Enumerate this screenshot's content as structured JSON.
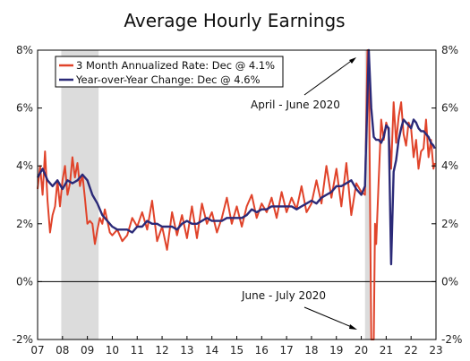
{
  "chart_data": {
    "type": "line",
    "title": "Average Hourly Earnings",
    "xlabel": "",
    "ylabel": "",
    "ylim": [
      -2,
      8
    ],
    "xlim": [
      2007.0,
      2023.0
    ],
    "yticks": [
      "8%",
      "6%",
      "4%",
      "2%",
      "0%",
      "-2%"
    ],
    "ytick_values": [
      8,
      6,
      4,
      2,
      0,
      -2
    ],
    "xticks": [
      "07",
      "08",
      "09",
      "10",
      "11",
      "12",
      "13",
      "14",
      "15",
      "16",
      "17",
      "18",
      "19",
      "20",
      "21",
      "22",
      "23"
    ],
    "grid": "horizontal",
    "legend_position": "top-left",
    "recession_shading": [
      [
        2007.95,
        2009.45
      ],
      [
        2020.15,
        2020.35
      ]
    ],
    "colors": {
      "annualized": "#e0432a",
      "yoy": "#2b2a78",
      "shade": "#dcdcdc",
      "zero_line": "#000000"
    },
    "annotations": [
      {
        "text": "April - June 2020",
        "x": 2020.3,
        "y": 8.0
      },
      {
        "text": "June - July 2020",
        "x": 2020.4,
        "y": -2.0
      }
    ],
    "series": [
      {
        "name": "3 Month Annualized Rate: Dec @ 4.1%",
        "key": "annualized",
        "x": [
          2007.0,
          2007.1,
          2007.2,
          2007.3,
          2007.4,
          2007.5,
          2007.6,
          2007.7,
          2007.8,
          2007.9,
          2008.0,
          2008.1,
          2008.2,
          2008.3,
          2008.4,
          2008.5,
          2008.6,
          2008.7,
          2008.8,
          2008.9,
          2009.0,
          2009.1,
          2009.2,
          2009.3,
          2009.4,
          2009.5,
          2009.6,
          2009.7,
          2009.8,
          2009.9,
          2010.0,
          2010.2,
          2010.4,
          2010.6,
          2010.8,
          2011.0,
          2011.2,
          2011.4,
          2011.6,
          2011.8,
          2012.0,
          2012.2,
          2012.4,
          2012.6,
          2012.8,
          2013.0,
          2013.2,
          2013.4,
          2013.6,
          2013.8,
          2014.0,
          2014.2,
          2014.4,
          2014.6,
          2014.8,
          2015.0,
          2015.2,
          2015.4,
          2015.6,
          2015.8,
          2016.0,
          2016.2,
          2016.4,
          2016.6,
          2016.8,
          2017.0,
          2017.2,
          2017.4,
          2017.6,
          2017.8,
          2018.0,
          2018.2,
          2018.4,
          2018.6,
          2018.8,
          2019.0,
          2019.2,
          2019.4,
          2019.6,
          2019.8,
          2020.0,
          2020.15,
          2020.25,
          2020.3,
          2020.4,
          2020.5,
          2020.55,
          2020.6,
          2020.7,
          2020.8,
          2020.9,
          2021.0,
          2021.1,
          2021.2,
          2021.3,
          2021.4,
          2021.5,
          2021.6,
          2021.7,
          2021.8,
          2021.9,
          2022.0,
          2022.1,
          2022.2,
          2022.3,
          2022.4,
          2022.5,
          2022.6,
          2022.7,
          2022.8,
          2022.9,
          2022.95
        ],
        "values": [
          3.2,
          4.0,
          3.0,
          4.5,
          2.8,
          1.7,
          2.3,
          2.6,
          3.5,
          2.6,
          3.5,
          4.0,
          3.0,
          3.4,
          4.3,
          3.6,
          4.1,
          3.3,
          3.7,
          2.9,
          2.0,
          2.1,
          2.0,
          1.3,
          1.8,
          2.2,
          2.0,
          2.5,
          2.1,
          1.7,
          1.6,
          1.8,
          1.4,
          1.6,
          2.2,
          1.9,
          2.4,
          1.8,
          2.8,
          1.4,
          1.9,
          1.1,
          2.4,
          1.6,
          2.3,
          1.5,
          2.6,
          1.5,
          2.7,
          2.0,
          2.4,
          1.7,
          2.2,
          2.9,
          2.0,
          2.6,
          1.9,
          2.6,
          3.0,
          2.2,
          2.7,
          2.4,
          2.9,
          2.2,
          3.1,
          2.4,
          2.9,
          2.5,
          3.3,
          2.4,
          2.7,
          3.5,
          2.7,
          4.0,
          2.9,
          3.9,
          2.6,
          4.1,
          2.3,
          3.4,
          3.1,
          3.0,
          8.0,
          8.0,
          -2.0,
          -2.0,
          2.0,
          1.3,
          3.5,
          5.6,
          4.9,
          5.5,
          5.2,
          3.9,
          6.2,
          4.8,
          5.7,
          6.2,
          5.1,
          4.7,
          5.5,
          5.3,
          4.3,
          4.9,
          3.9,
          4.5,
          4.6,
          5.6,
          4.3,
          4.9,
          3.9,
          4.1
        ]
      },
      {
        "name": "Year-over-Year Change: Dec @ 4.6%",
        "key": "yoy",
        "x": [
          2007.0,
          2007.2,
          2007.4,
          2007.6,
          2007.8,
          2008.0,
          2008.2,
          2008.4,
          2008.6,
          2008.8,
          2009.0,
          2009.2,
          2009.4,
          2009.6,
          2009.8,
          2010.0,
          2010.2,
          2010.4,
          2010.6,
          2010.8,
          2011.0,
          2011.2,
          2011.4,
          2011.6,
          2011.8,
          2012.0,
          2012.2,
          2012.4,
          2012.6,
          2012.8,
          2013.0,
          2013.2,
          2013.4,
          2013.6,
          2013.8,
          2014.0,
          2014.2,
          2014.4,
          2014.6,
          2014.8,
          2015.0,
          2015.2,
          2015.4,
          2015.6,
          2015.8,
          2016.0,
          2016.2,
          2016.4,
          2016.6,
          2016.8,
          2017.0,
          2017.2,
          2017.4,
          2017.6,
          2017.8,
          2018.0,
          2018.2,
          2018.4,
          2018.6,
          2018.8,
          2019.0,
          2019.2,
          2019.4,
          2019.6,
          2019.8,
          2020.0,
          2020.15,
          2020.3,
          2020.4,
          2020.5,
          2020.6,
          2020.7,
          2020.8,
          2020.9,
          2021.0,
          2021.1,
          2021.2,
          2021.3,
          2021.4,
          2021.5,
          2021.6,
          2021.7,
          2021.8,
          2021.9,
          2022.0,
          2022.1,
          2022.2,
          2022.3,
          2022.4,
          2022.5,
          2022.6,
          2022.7,
          2022.8,
          2022.9,
          2022.95
        ],
        "values": [
          3.6,
          3.9,
          3.5,
          3.3,
          3.5,
          3.2,
          3.5,
          3.4,
          3.5,
          3.7,
          3.5,
          3.0,
          2.7,
          2.3,
          2.1,
          1.9,
          1.8,
          1.8,
          1.8,
          1.7,
          1.9,
          1.9,
          2.1,
          2.0,
          2.0,
          1.9,
          1.9,
          1.9,
          1.8,
          2.0,
          2.1,
          2.0,
          2.0,
          2.1,
          2.2,
          2.1,
          2.1,
          2.1,
          2.2,
          2.2,
          2.2,
          2.2,
          2.3,
          2.5,
          2.4,
          2.5,
          2.5,
          2.6,
          2.6,
          2.6,
          2.6,
          2.6,
          2.5,
          2.6,
          2.7,
          2.8,
          2.7,
          2.9,
          3.0,
          3.1,
          3.3,
          3.3,
          3.4,
          3.5,
          3.2,
          3.0,
          3.3,
          8.0,
          6.0,
          5.0,
          4.9,
          4.9,
          4.8,
          5.0,
          5.4,
          5.3,
          0.6,
          3.8,
          4.2,
          4.9,
          5.3,
          5.6,
          5.5,
          5.4,
          5.3,
          5.6,
          5.5,
          5.3,
          5.2,
          5.2,
          5.1,
          5.0,
          4.8,
          4.7,
          4.6
        ]
      }
    ]
  }
}
